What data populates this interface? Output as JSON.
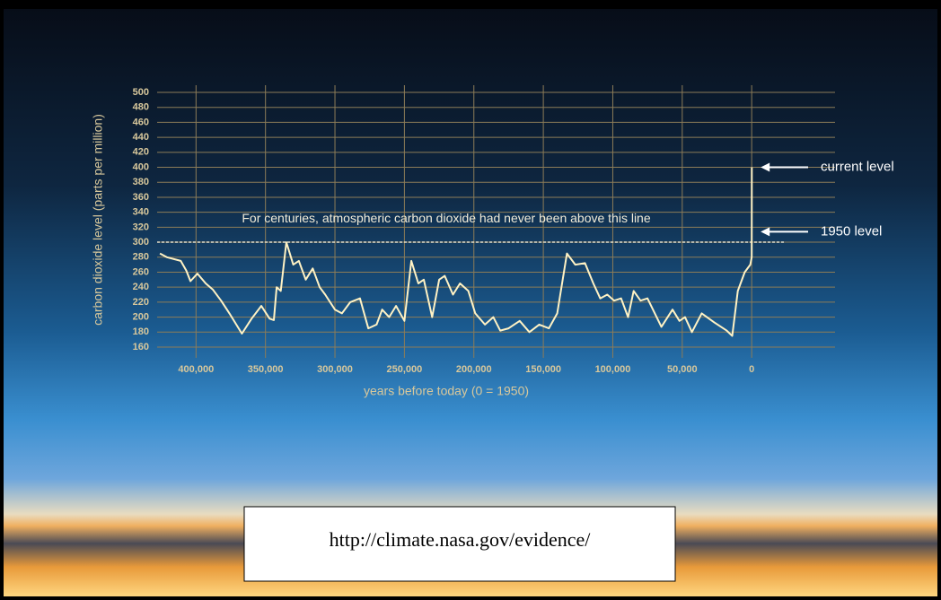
{
  "chart_data": {
    "type": "line",
    "y_label": "carbon dioxide level (parts per million)",
    "x_label": "years before today (0 = 1950)",
    "xlim": [
      428000,
      -60000
    ],
    "ylim": [
      160,
      500
    ],
    "xticks": [
      {
        "value": 400000,
        "label": "400,000"
      },
      {
        "value": 350000,
        "label": "350,000"
      },
      {
        "value": 300000,
        "label": "300,000"
      },
      {
        "value": 250000,
        "label": "250,000"
      },
      {
        "value": 200000,
        "label": "200,000"
      },
      {
        "value": 150000,
        "label": "150,000"
      },
      {
        "value": 100000,
        "label": "100,000"
      },
      {
        "value": 50000,
        "label": "50,000"
      },
      0
    ],
    "yticks": [
      160,
      180,
      200,
      220,
      240,
      260,
      280,
      300,
      320,
      340,
      360,
      380,
      400,
      420,
      440,
      460,
      480,
      500
    ],
    "grid": true,
    "color": "#fff2c4",
    "x": [
      426000,
      421000,
      411000,
      407000,
      404000,
      399000,
      393000,
      388000,
      382000,
      376000,
      367000,
      360000,
      353000,
      347000,
      344000,
      342000,
      339000,
      335000,
      330000,
      326000,
      321000,
      316000,
      311000,
      307000,
      300000,
      295000,
      289000,
      282000,
      276000,
      270000,
      266000,
      261000,
      256000,
      250000,
      245000,
      240000,
      236000,
      230000,
      225000,
      221000,
      215000,
      210000,
      204000,
      199000,
      192000,
      186000,
      181000,
      175000,
      167000,
      160000,
      153000,
      146000,
      140000,
      133000,
      127000,
      120000,
      114000,
      109000,
      104000,
      99000,
      94000,
      89000,
      85000,
      80000,
      75000,
      65000,
      57000,
      52000,
      48000,
      43000,
      36000,
      27000,
      18000,
      14000,
      10000,
      5000,
      1000,
      0,
      -60
    ],
    "values": [
      285,
      280,
      275,
      262,
      248,
      258,
      245,
      237,
      222,
      205,
      178,
      198,
      215,
      198,
      196,
      240,
      235,
      300,
      270,
      275,
      250,
      265,
      240,
      230,
      210,
      205,
      220,
      225,
      185,
      190,
      210,
      200,
      215,
      195,
      275,
      245,
      250,
      200,
      250,
      255,
      230,
      245,
      235,
      205,
      190,
      200,
      182,
      185,
      195,
      180,
      190,
      185,
      205,
      285,
      270,
      272,
      245,
      225,
      230,
      222,
      225,
      200,
      235,
      222,
      225,
      187,
      210,
      195,
      200,
      180,
      205,
      193,
      182,
      175,
      235,
      260,
      270,
      280,
      400
    ],
    "threshold": {
      "value": 300,
      "label": "For centuries, atmospheric carbon dioxide had never been above this line"
    },
    "annotations": [
      {
        "text": "current level",
        "y": 400
      },
      {
        "text": "1950 level",
        "y": 314
      }
    ]
  },
  "source_url": "http://climate.nasa.gov/evidence/"
}
